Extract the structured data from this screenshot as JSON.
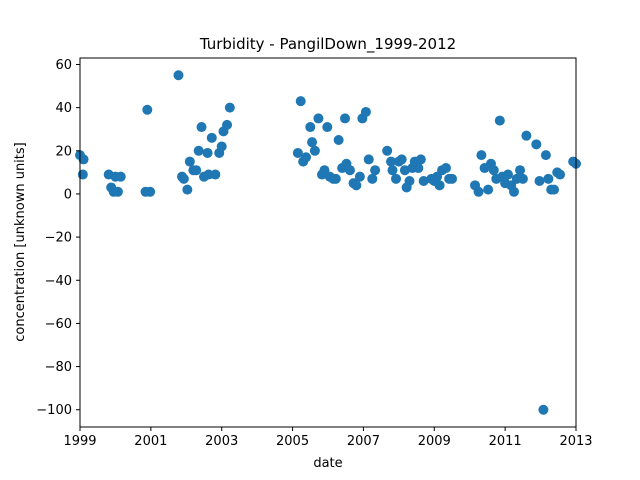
{
  "chart_data": {
    "type": "scatter",
    "title": "Turbidity - PangilDown_1999-2012",
    "xlabel": "date",
    "ylabel": "concentration [unknown units]",
    "xlim": [
      1999.0,
      2013.0
    ],
    "ylim": [
      -108,
      63
    ],
    "x_ticks": [
      1999,
      2001,
      2003,
      2005,
      2007,
      2009,
      2011,
      2013
    ],
    "y_ticks": [
      -100,
      -80,
      -60,
      -40,
      -20,
      0,
      20,
      40,
      60
    ],
    "grid": false,
    "marker_color": "#1f77b4",
    "points": [
      {
        "x": 1999.0,
        "y": 18
      },
      {
        "x": 1999.08,
        "y": 9
      },
      {
        "x": 1999.1,
        "y": 16
      },
      {
        "x": 1999.81,
        "y": 9
      },
      {
        "x": 1999.88,
        "y": 3
      },
      {
        "x": 1999.95,
        "y": 1
      },
      {
        "x": 2000.0,
        "y": 8
      },
      {
        "x": 2000.07,
        "y": 1
      },
      {
        "x": 2000.15,
        "y": 8
      },
      {
        "x": 2000.85,
        "y": 1
      },
      {
        "x": 2000.9,
        "y": 39
      },
      {
        "x": 2000.98,
        "y": 1
      },
      {
        "x": 2001.78,
        "y": 55
      },
      {
        "x": 2001.88,
        "y": 8
      },
      {
        "x": 2001.93,
        "y": 7
      },
      {
        "x": 2002.03,
        "y": 2
      },
      {
        "x": 2002.1,
        "y": 15
      },
      {
        "x": 2002.2,
        "y": 11
      },
      {
        "x": 2002.28,
        "y": 11
      },
      {
        "x": 2002.35,
        "y": 20
      },
      {
        "x": 2002.43,
        "y": 31
      },
      {
        "x": 2002.5,
        "y": 8
      },
      {
        "x": 2002.6,
        "y": 19
      },
      {
        "x": 2002.63,
        "y": 9
      },
      {
        "x": 2002.72,
        "y": 26
      },
      {
        "x": 2002.82,
        "y": 9
      },
      {
        "x": 2002.93,
        "y": 19
      },
      {
        "x": 2003.0,
        "y": 22
      },
      {
        "x": 2003.05,
        "y": 29
      },
      {
        "x": 2003.15,
        "y": 32
      },
      {
        "x": 2003.23,
        "y": 40
      },
      {
        "x": 2005.15,
        "y": 19
      },
      {
        "x": 2005.23,
        "y": 43
      },
      {
        "x": 2005.3,
        "y": 15
      },
      {
        "x": 2005.38,
        "y": 17
      },
      {
        "x": 2005.5,
        "y": 31
      },
      {
        "x": 2005.55,
        "y": 24
      },
      {
        "x": 2005.63,
        "y": 20
      },
      {
        "x": 2005.73,
        "y": 35
      },
      {
        "x": 2005.83,
        "y": 9
      },
      {
        "x": 2005.9,
        "y": 11
      },
      {
        "x": 2005.98,
        "y": 31
      },
      {
        "x": 2006.05,
        "y": 8
      },
      {
        "x": 2006.15,
        "y": 7
      },
      {
        "x": 2006.22,
        "y": 7
      },
      {
        "x": 2006.3,
        "y": 25
      },
      {
        "x": 2006.4,
        "y": 12
      },
      {
        "x": 2006.48,
        "y": 35
      },
      {
        "x": 2006.52,
        "y": 14
      },
      {
        "x": 2006.62,
        "y": 11
      },
      {
        "x": 2006.72,
        "y": 5
      },
      {
        "x": 2006.8,
        "y": 4
      },
      {
        "x": 2006.9,
        "y": 8
      },
      {
        "x": 2006.97,
        "y": 35
      },
      {
        "x": 2007.07,
        "y": 38
      },
      {
        "x": 2007.15,
        "y": 16
      },
      {
        "x": 2007.25,
        "y": 7
      },
      {
        "x": 2007.33,
        "y": 11
      },
      {
        "x": 2007.67,
        "y": 20
      },
      {
        "x": 2007.78,
        "y": 15
      },
      {
        "x": 2007.82,
        "y": 11
      },
      {
        "x": 2007.92,
        "y": 7
      },
      {
        "x": 2008.0,
        "y": 15
      },
      {
        "x": 2008.08,
        "y": 16
      },
      {
        "x": 2008.17,
        "y": 11
      },
      {
        "x": 2008.22,
        "y": 3
      },
      {
        "x": 2008.3,
        "y": 6
      },
      {
        "x": 2008.38,
        "y": 12
      },
      {
        "x": 2008.45,
        "y": 15
      },
      {
        "x": 2008.55,
        "y": 12
      },
      {
        "x": 2008.62,
        "y": 16
      },
      {
        "x": 2008.7,
        "y": 6
      },
      {
        "x": 2008.92,
        "y": 7
      },
      {
        "x": 2009.0,
        "y": 6
      },
      {
        "x": 2009.08,
        "y": 8
      },
      {
        "x": 2009.15,
        "y": 4
      },
      {
        "x": 2009.22,
        "y": 11
      },
      {
        "x": 2009.33,
        "y": 12
      },
      {
        "x": 2009.42,
        "y": 7
      },
      {
        "x": 2009.5,
        "y": 7
      },
      {
        "x": 2010.15,
        "y": 4
      },
      {
        "x": 2010.25,
        "y": 1
      },
      {
        "x": 2010.33,
        "y": 18
      },
      {
        "x": 2010.42,
        "y": 12
      },
      {
        "x": 2010.52,
        "y": 2
      },
      {
        "x": 2010.6,
        "y": 14
      },
      {
        "x": 2010.68,
        "y": 11
      },
      {
        "x": 2010.75,
        "y": 7
      },
      {
        "x": 2010.85,
        "y": 34
      },
      {
        "x": 2010.92,
        "y": 8
      },
      {
        "x": 2011.0,
        "y": 5
      },
      {
        "x": 2011.08,
        "y": 9
      },
      {
        "x": 2011.17,
        "y": 4
      },
      {
        "x": 2011.25,
        "y": 1
      },
      {
        "x": 2011.33,
        "y": 7
      },
      {
        "x": 2011.42,
        "y": 11
      },
      {
        "x": 2011.5,
        "y": 7
      },
      {
        "x": 2011.6,
        "y": 27
      },
      {
        "x": 2011.88,
        "y": 23
      },
      {
        "x": 2011.97,
        "y": 6
      },
      {
        "x": 2012.08,
        "y": -100
      },
      {
        "x": 2012.15,
        "y": 18
      },
      {
        "x": 2012.22,
        "y": 7
      },
      {
        "x": 2012.3,
        "y": 2
      },
      {
        "x": 2012.38,
        "y": 2
      },
      {
        "x": 2012.47,
        "y": 10
      },
      {
        "x": 2012.55,
        "y": 9
      },
      {
        "x": 2012.92,
        "y": 15
      },
      {
        "x": 2013.0,
        "y": 14
      }
    ]
  }
}
